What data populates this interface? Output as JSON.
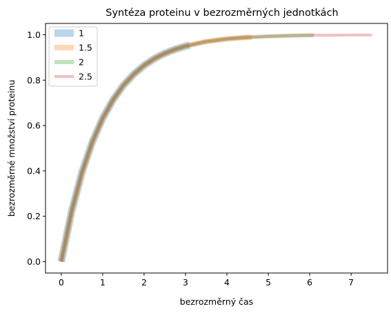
{
  "chart_data": {
    "type": "line",
    "title": "Syntéza proteinu v bezrozměrných jednotkách",
    "xlabel": "bezrozměrný čas",
    "ylabel": "bezrozměrné množství proteinu",
    "xlim": [
      -0.38,
      7.88
    ],
    "ylim": [
      -0.05,
      1.05
    ],
    "xticks": [
      0,
      1,
      2,
      3,
      4,
      5,
      6,
      7
    ],
    "yticks": [
      0.0,
      0.2,
      0.4,
      0.6,
      0.8,
      1.0
    ],
    "xtick_labels": [
      "0",
      "1",
      "2",
      "3",
      "4",
      "5",
      "6",
      "7"
    ],
    "ytick_labels": [
      "0.0",
      "0.2",
      "0.4",
      "0.6",
      "0.8",
      "1.0"
    ],
    "grid": false,
    "legend_position": "top-left",
    "series": [
      {
        "name": "1",
        "color": "#1f77b4",
        "x": [
          0,
          0.25,
          0.5,
          0.75,
          1.0,
          1.25,
          1.5,
          1.75,
          2.0,
          2.25,
          2.5,
          2.75,
          3.0,
          3.1
        ],
        "y": [
          0,
          0.221,
          0.393,
          0.528,
          0.632,
          0.713,
          0.777,
          0.826,
          0.865,
          0.895,
          0.918,
          0.936,
          0.95,
          0.955
        ]
      },
      {
        "name": "1.5",
        "color": "#ff7f0e",
        "x": [
          0,
          0.25,
          0.5,
          0.75,
          1.0,
          1.25,
          1.5,
          1.75,
          2.0,
          2.25,
          2.5,
          2.75,
          3.0,
          3.25,
          3.5,
          3.75,
          4.0,
          4.25,
          4.6
        ],
        "y": [
          0,
          0.221,
          0.393,
          0.528,
          0.632,
          0.713,
          0.777,
          0.826,
          0.865,
          0.895,
          0.918,
          0.936,
          0.95,
          0.961,
          0.97,
          0.976,
          0.982,
          0.986,
          0.99
        ]
      },
      {
        "name": "2",
        "color": "#2ca02c",
        "x": [
          0,
          0.25,
          0.5,
          0.75,
          1.0,
          1.25,
          1.5,
          1.75,
          2.0,
          2.25,
          2.5,
          2.75,
          3.0,
          3.5,
          4.0,
          4.5,
          5.0,
          5.5,
          6.1
        ],
        "y": [
          0,
          0.221,
          0.393,
          0.528,
          0.632,
          0.713,
          0.777,
          0.826,
          0.865,
          0.895,
          0.918,
          0.936,
          0.95,
          0.97,
          0.982,
          0.989,
          0.993,
          0.996,
          0.998
        ]
      },
      {
        "name": "2.5",
        "color": "#d62728",
        "x": [
          0,
          0.25,
          0.5,
          0.75,
          1.0,
          1.25,
          1.5,
          1.75,
          2.0,
          2.25,
          2.5,
          2.75,
          3.0,
          3.5,
          4.0,
          4.5,
          5.0,
          5.5,
          6.0,
          6.5,
          7.0,
          7.5
        ],
        "y": [
          0,
          0.221,
          0.393,
          0.528,
          0.632,
          0.713,
          0.777,
          0.826,
          0.865,
          0.895,
          0.918,
          0.936,
          0.95,
          0.97,
          0.982,
          0.989,
          0.993,
          0.996,
          0.998,
          0.998,
          0.999,
          0.999
        ]
      }
    ]
  }
}
